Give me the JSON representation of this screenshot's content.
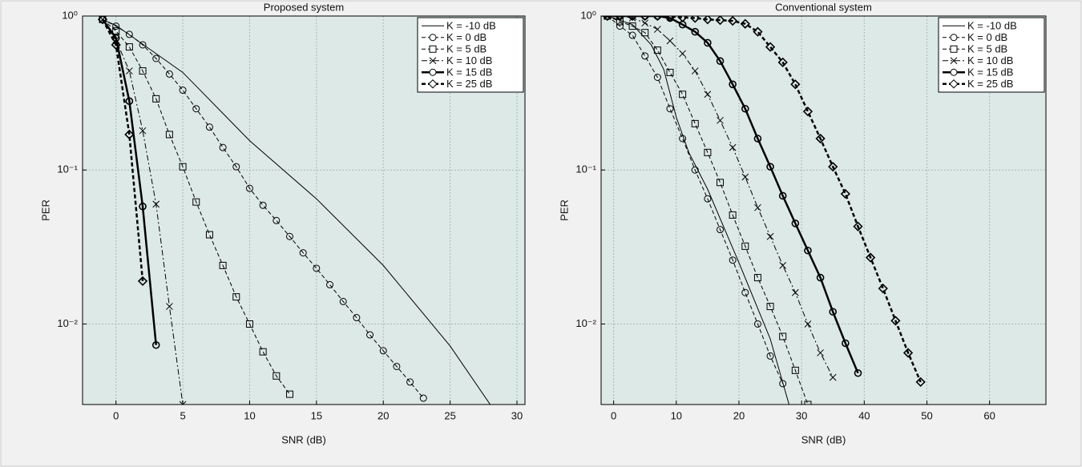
{
  "chart_data": [
    {
      "type": "line",
      "title": "Proposed system",
      "x_label": "SNR (dB)",
      "y_label": "PER",
      "xlim": [
        -2.5,
        30.6
      ],
      "xticks": [
        0,
        5,
        10,
        15,
        20,
        25,
        30
      ],
      "ylim": [
        0.003,
        1
      ],
      "y_scale": "log",
      "yticks": [
        {
          "value": 1,
          "label": "10⁰"
        },
        {
          "value": 0.1,
          "label": "10⁻¹"
        },
        {
          "value": 0.01,
          "label": "10⁻²"
        }
      ],
      "grid": true,
      "legend": "upper right",
      "background": "#dde9e6",
      "series": [
        {
          "name": "K = -10 dB",
          "color": "#000000",
          "dash": "solid",
          "marker": "none",
          "width": 1,
          "x": [
            -1,
            0,
            5,
            10,
            15,
            20,
            25,
            28
          ],
          "values": [
            0.95,
            0.87,
            0.43,
            0.155,
            0.065,
            0.024,
            0.0072,
            0.003
          ]
        },
        {
          "name": "K = 0 dB",
          "color": "#000000",
          "dash": "dashed",
          "marker": "circle",
          "width": 1,
          "x": [
            -1,
            0,
            1,
            2,
            3,
            4,
            5,
            6,
            7,
            8,
            9,
            10,
            11,
            12,
            13,
            14,
            15,
            16,
            17,
            18,
            19,
            20,
            21,
            22,
            23
          ],
          "values": [
            0.95,
            0.86,
            0.76,
            0.65,
            0.53,
            0.42,
            0.33,
            0.25,
            0.19,
            0.14,
            0.105,
            0.076,
            0.059,
            0.047,
            0.037,
            0.029,
            0.023,
            0.018,
            0.014,
            0.011,
            0.0085,
            0.0067,
            0.0053,
            0.0042,
            0.0033
          ]
        },
        {
          "name": "K = 5 dB",
          "color": "#000000",
          "dash": "dashed",
          "marker": "square",
          "width": 1,
          "x": [
            -1,
            0,
            1,
            2,
            3,
            4,
            5,
            6,
            7,
            8,
            9,
            10,
            11,
            12,
            13
          ],
          "values": [
            0.95,
            0.8,
            0.63,
            0.44,
            0.29,
            0.17,
            0.105,
            0.062,
            0.038,
            0.024,
            0.015,
            0.01,
            0.0066,
            0.0046,
            0.0035
          ]
        },
        {
          "name": "K = 10 dB",
          "color": "#000000",
          "dash": "dashdot",
          "marker": "x",
          "width": 1,
          "x": [
            -1,
            0,
            1,
            2,
            3,
            4,
            5
          ],
          "values": [
            0.95,
            0.7,
            0.44,
            0.18,
            0.06,
            0.013,
            0.003
          ]
        },
        {
          "name": "K = 15 dB",
          "color": "#000000",
          "dash": "solid",
          "marker": "circle",
          "width": 2.5,
          "x": [
            -1,
            0,
            1,
            2,
            3
          ],
          "values": [
            0.95,
            0.72,
            0.28,
            0.058,
            0.0073
          ]
        },
        {
          "name": "K = 25 dB",
          "color": "#000000",
          "dash": "dashed",
          "marker": "diamond",
          "width": 2.5,
          "x": [
            -1,
            0,
            1,
            2
          ],
          "values": [
            0.95,
            0.65,
            0.17,
            0.019
          ]
        }
      ]
    },
    {
      "type": "line",
      "title": "Conventional system",
      "x_label": "SNR (dB)",
      "y_label": "PER",
      "xlim": [
        -2,
        69
      ],
      "xticks": [
        0,
        10,
        20,
        30,
        40,
        50,
        60
      ],
      "ylim": [
        0.003,
        1
      ],
      "y_scale": "log",
      "yticks": [
        {
          "value": 1,
          "label": "10⁰"
        },
        {
          "value": 0.1,
          "label": "10⁻¹"
        },
        {
          "value": 0.01,
          "label": "10⁻²"
        }
      ],
      "grid": true,
      "legend": "upper right",
      "background": "#dde9e6",
      "series": [
        {
          "name": "K = -10 dB",
          "color": "#000000",
          "dash": "solid",
          "marker": "none",
          "width": 1,
          "x": [
            -2,
            0,
            3,
            6,
            8,
            10,
            12,
            15,
            20,
            25,
            28
          ],
          "values": [
            1,
            0.97,
            0.88,
            0.65,
            0.45,
            0.22,
            0.13,
            0.075,
            0.025,
            0.008,
            0.003
          ]
        },
        {
          "name": "K = 0 dB",
          "color": "#000000",
          "dash": "dashed",
          "marker": "circle",
          "width": 1,
          "x": [
            -1,
            1,
            3,
            5,
            7,
            9,
            11,
            13,
            15,
            17,
            19,
            21,
            23,
            25,
            27
          ],
          "values": [
            1,
            0.86,
            0.75,
            0.55,
            0.4,
            0.25,
            0.16,
            0.1,
            0.065,
            0.041,
            0.026,
            0.016,
            0.01,
            0.0062,
            0.0041
          ]
        },
        {
          "name": "K = 5 dB",
          "color": "#000000",
          "dash": "dashed",
          "marker": "square",
          "width": 1,
          "x": [
            -1,
            1,
            3,
            5,
            7,
            9,
            11,
            13,
            15,
            17,
            19,
            21,
            23,
            25,
            27,
            29,
            31
          ],
          "values": [
            1,
            0.92,
            0.86,
            0.78,
            0.6,
            0.43,
            0.31,
            0.2,
            0.13,
            0.083,
            0.051,
            0.032,
            0.02,
            0.013,
            0.0083,
            0.005,
            0.003
          ]
        },
        {
          "name": "K = 10 dB",
          "color": "#000000",
          "dash": "dashdot",
          "marker": "x",
          "width": 1,
          "x": [
            -1,
            1,
            3,
            5,
            7,
            9,
            11,
            13,
            15,
            17,
            19,
            21,
            23,
            25,
            27,
            29,
            31,
            33,
            35
          ],
          "values": [
            1,
            1,
            0.97,
            0.9,
            0.82,
            0.69,
            0.57,
            0.44,
            0.31,
            0.21,
            0.14,
            0.09,
            0.057,
            0.037,
            0.024,
            0.016,
            0.01,
            0.0065,
            0.0045
          ]
        },
        {
          "name": "K = 15 dB",
          "color": "#000000",
          "dash": "solid",
          "marker": "circle",
          "width": 2.5,
          "x": [
            -1,
            1,
            3,
            5,
            7,
            9,
            11,
            13,
            15,
            17,
            19,
            21,
            23,
            25,
            27,
            29,
            31,
            33,
            35,
            37,
            39
          ],
          "values": [
            1,
            1,
            1,
            1,
            1,
            0.97,
            0.88,
            0.79,
            0.67,
            0.51,
            0.36,
            0.25,
            0.16,
            0.105,
            0.068,
            0.045,
            0.03,
            0.02,
            0.012,
            0.0075,
            0.0048
          ]
        },
        {
          "name": "K = 25 dB",
          "color": "#000000",
          "dash": "dashed",
          "marker": "diamond",
          "width": 2.5,
          "x": [
            -1,
            1,
            3,
            5,
            7,
            9,
            11,
            13,
            15,
            17,
            19,
            21,
            23,
            25,
            27,
            29,
            31,
            33,
            35,
            37,
            39,
            41,
            43,
            45,
            47,
            49
          ],
          "values": [
            1,
            1,
            1,
            1,
            1,
            0.99,
            0.98,
            0.97,
            0.95,
            0.94,
            0.93,
            0.89,
            0.79,
            0.63,
            0.5,
            0.36,
            0.24,
            0.16,
            0.105,
            0.07,
            0.043,
            0.027,
            0.017,
            0.0105,
            0.0065,
            0.0042
          ]
        }
      ]
    }
  ]
}
